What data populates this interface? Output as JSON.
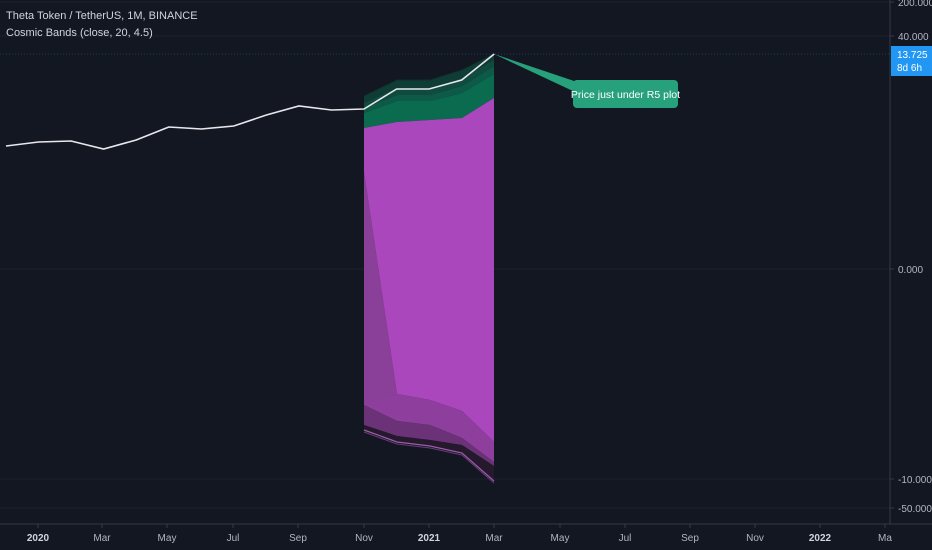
{
  "header": {
    "symbol_line": "Theta Token / TetherUS, 1M, BINANCE",
    "indicator_line": "Cosmic Bands (close, 20, 4.5)"
  },
  "price_badge": {
    "price": "13.725",
    "countdown": "8d 6h"
  },
  "annotation": {
    "text": "Price just under R5 plot"
  },
  "colors": {
    "background": "#131722",
    "price_line": "#e8e8ec",
    "upper_band": [
      "#0f3d35",
      "#114a3f",
      "#0c5a47",
      "#0b6b4e"
    ],
    "lower_band_main": "#ab47bc",
    "lower_band_dark": [
      "#7b3a8a",
      "#5a2d66",
      "#2a1f33",
      "#7b3a8a"
    ],
    "badge": "#2196f3",
    "annotation": "#26a17b"
  },
  "chart_data": {
    "type": "line",
    "x_tick_labels": [
      "2020",
      "Mar",
      "May",
      "Jul",
      "Sep",
      "Nov",
      "2021",
      "Mar",
      "May",
      "Jul",
      "Sep",
      "Nov",
      "2022",
      "Ma"
    ],
    "x_tick_bold": [
      true,
      false,
      false,
      false,
      false,
      false,
      true,
      false,
      false,
      false,
      false,
      false,
      true,
      false
    ],
    "y_tick_labels": [
      "200.000",
      "40.000",
      "0.000",
      "-10.000",
      "-50.000"
    ],
    "y_scale": "symmetric-log",
    "series": [
      {
        "x": [
          "2019-12",
          "2020-01",
          "2020-02",
          "2020-03",
          "2020-04",
          "2020-05",
          "2020-06",
          "2020-07",
          "2020-08",
          "2020-09",
          "2020-10",
          "2020-11",
          "2020-12",
          "2021-01",
          "2021-02",
          "2021-03"
        ],
        "values": [
          0.088,
          0.103,
          0.108,
          0.075,
          0.095,
          0.175,
          0.165,
          0.19,
          0.32,
          0.48,
          0.4,
          0.42,
          1.2,
          1.1,
          2.8,
          13.725
        ]
      }
    ],
    "bands": {
      "x": [
        "2020-11",
        "2020-12",
        "2021-01",
        "2021-02",
        "2021-03"
      ],
      "r5": [
        0.24,
        0.62,
        0.65,
        1.05,
        3.6
      ],
      "r4": [
        0.16,
        0.35,
        0.36,
        0.52,
        2.1
      ],
      "r3": [
        0.12,
        0.22,
        0.23,
        0.32,
        1.5
      ],
      "r2": [
        0.09,
        0.14,
        0.15,
        0.2,
        1.1
      ],
      "r1": [
        0.06,
        0.075,
        0.085,
        0.1,
        0.55
      ],
      "s1": [
        -0.9,
        -1.9,
        -2.05,
        -2.5,
        -3.6
      ],
      "s2": [
        -0.035,
        -0.25,
        -0.26,
        -0.27,
        -0.28
      ],
      "s3": [
        -2.9,
        -4.2,
        -4.6,
        -5.6,
        -8.0
      ],
      "s4": [
        -3.6,
        -5.3,
        -5.8,
        -7.0,
        -10.0
      ],
      "s5": [
        -4.5,
        -6.3,
        -6.8,
        -8.2,
        -11.8
      ]
    }
  }
}
